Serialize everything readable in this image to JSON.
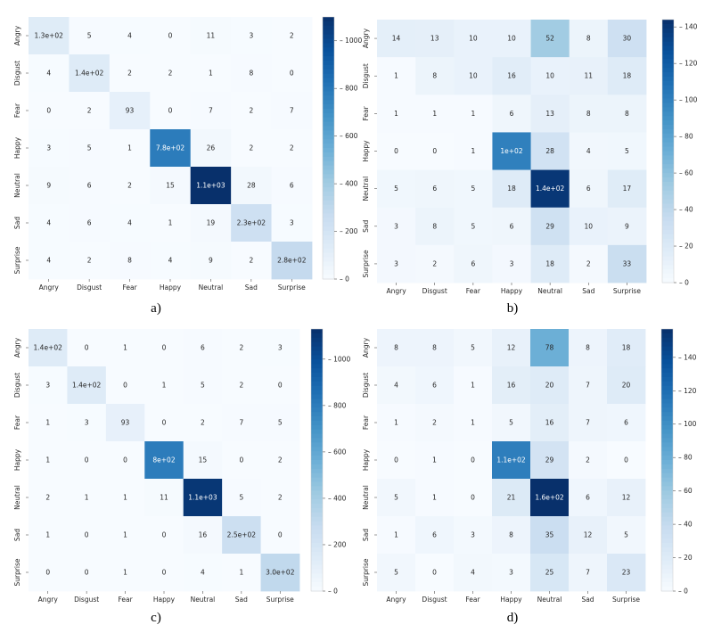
{
  "figure": {
    "captions": [
      "a)",
      "b)",
      "c)",
      "d)"
    ]
  },
  "colormap": {
    "name": "Blues",
    "stops": [
      "#f7fbff",
      "#deebf7",
      "#c6dbef",
      "#9ecae1",
      "#6baed6",
      "#4292c6",
      "#2171b5",
      "#08519c",
      "#08306b"
    ],
    "light_text": "#ffffff",
    "dark_text": "#262626"
  },
  "chart_data": [
    {
      "type": "heatmap",
      "caption": "a)",
      "row_labels": [
        "Angry",
        "Disgust",
        "Fear",
        "Happy",
        "Neutral",
        "Sad",
        "Surprise"
      ],
      "col_labels": [
        "Angry",
        "Disgust",
        "Fear",
        "Happy",
        "Neutral",
        "Sad",
        "Surprise"
      ],
      "values": [
        [
          130,
          5,
          4,
          0,
          11,
          3,
          2
        ],
        [
          4,
          140,
          2,
          2,
          1,
          8,
          0
        ],
        [
          0,
          2,
          93,
          0,
          7,
          2,
          7
        ],
        [
          3,
          5,
          1,
          780,
          26,
          2,
          2
        ],
        [
          9,
          6,
          2,
          15,
          1100,
          28,
          6
        ],
        [
          4,
          6,
          4,
          1,
          19,
          230,
          3
        ],
        [
          4,
          2,
          8,
          4,
          9,
          2,
          280
        ]
      ],
      "annotations": [
        [
          "1.3e+02",
          "5",
          "4",
          "0",
          "11",
          "3",
          "2"
        ],
        [
          "4",
          "1.4e+02",
          "2",
          "2",
          "1",
          "8",
          "0"
        ],
        [
          "0",
          "2",
          "93",
          "0",
          "7",
          "2",
          "7"
        ],
        [
          "3",
          "5",
          "1",
          "7.8e+02",
          "26",
          "2",
          "2"
        ],
        [
          "9",
          "6",
          "2",
          "15",
          "1.1e+03",
          "28",
          "6"
        ],
        [
          "4",
          "6",
          "4",
          "1",
          "19",
          "2.3e+02",
          "3"
        ],
        [
          "4",
          "2",
          "8",
          "4",
          "9",
          "2",
          "2.8e+02"
        ]
      ],
      "color_range": [
        0,
        1100
      ],
      "colorbar_ticks": [
        0,
        200,
        400,
        600,
        800,
        1000
      ],
      "colorbar_labels": [
        "0",
        "200",
        "400",
        "600",
        "800",
        "1000"
      ]
    },
    {
      "type": "heatmap",
      "caption": "b)",
      "row_labels": [
        "Angry",
        "Disgust",
        "Fear",
        "Happy",
        "Neutral",
        "Sad",
        "Surprise"
      ],
      "col_labels": [
        "Angry",
        "Disgust",
        "Fear",
        "Happy",
        "Neutral",
        "Sad",
        "Surprise"
      ],
      "values": [
        [
          14,
          13,
          10,
          10,
          52,
          8,
          30
        ],
        [
          1,
          8,
          10,
          16,
          10,
          11,
          18
        ],
        [
          1,
          1,
          1,
          6,
          13,
          8,
          8
        ],
        [
          0,
          0,
          1,
          100,
          28,
          4,
          5
        ],
        [
          5,
          6,
          5,
          18,
          140,
          6,
          17
        ],
        [
          3,
          8,
          5,
          6,
          29,
          10,
          9
        ],
        [
          3,
          2,
          6,
          3,
          18,
          2,
          33
        ]
      ],
      "annotations": [
        [
          "14",
          "13",
          "10",
          "10",
          "52",
          "8",
          "30"
        ],
        [
          "1",
          "8",
          "10",
          "16",
          "10",
          "11",
          "18"
        ],
        [
          "1",
          "1",
          "1",
          "6",
          "13",
          "8",
          "8"
        ],
        [
          "0",
          "0",
          "1",
          "1e+02",
          "28",
          "4",
          "5"
        ],
        [
          "5",
          "6",
          "5",
          "18",
          "1.4e+02",
          "6",
          "17"
        ],
        [
          "3",
          "8",
          "5",
          "6",
          "29",
          "10",
          "9"
        ],
        [
          "3",
          "2",
          "6",
          "3",
          "18",
          "2",
          "33"
        ]
      ],
      "color_range": [
        0,
        144
      ],
      "colorbar_ticks": [
        0,
        20,
        40,
        60,
        80,
        100,
        120,
        140
      ],
      "colorbar_labels": [
        "0",
        "20",
        "40",
        "60",
        "80",
        "100",
        "120",
        "140"
      ]
    },
    {
      "type": "heatmap",
      "caption": "c)",
      "row_labels": [
        "Angry",
        "Disgust",
        "Fear",
        "Happy",
        "Neutral",
        "Sad",
        "Surprise"
      ],
      "col_labels": [
        "Angry",
        "Disgust",
        "Fear",
        "Happy",
        "Neutral",
        "Sad",
        "Surprise"
      ],
      "values": [
        [
          140,
          0,
          1,
          0,
          6,
          2,
          3
        ],
        [
          3,
          140,
          0,
          1,
          5,
          2,
          0
        ],
        [
          1,
          3,
          93,
          0,
          2,
          7,
          5
        ],
        [
          1,
          0,
          0,
          800,
          15,
          0,
          2
        ],
        [
          2,
          1,
          1,
          11,
          1100,
          5,
          2
        ],
        [
          1,
          0,
          1,
          0,
          16,
          250,
          0
        ],
        [
          0,
          0,
          1,
          0,
          4,
          1,
          300
        ]
      ],
      "annotations": [
        [
          "1.4e+02",
          "0",
          "1",
          "0",
          "6",
          "2",
          "3"
        ],
        [
          "3",
          "1.4e+02",
          "0",
          "1",
          "5",
          "2",
          "0"
        ],
        [
          "1",
          "3",
          "93",
          "0",
          "2",
          "7",
          "5"
        ],
        [
          "1",
          "0",
          "0",
          "8e+02",
          "15",
          "0",
          "2"
        ],
        [
          "2",
          "1",
          "1",
          "11",
          "1.1e+03",
          "5",
          "2"
        ],
        [
          "1",
          "0",
          "1",
          "0",
          "16",
          "2.5e+02",
          "0"
        ],
        [
          "0",
          "0",
          "1",
          "0",
          "4",
          "1",
          "3.0e+02"
        ]
      ],
      "color_range": [
        0,
        1130
      ],
      "colorbar_ticks": [
        0,
        200,
        400,
        600,
        800,
        1000
      ],
      "colorbar_labels": [
        "0",
        "200",
        "400",
        "600",
        "800",
        "1000"
      ]
    },
    {
      "type": "heatmap",
      "caption": "d)",
      "row_labels": [
        "Angry",
        "Disgust",
        "Fear",
        "Happy",
        "Neutral",
        "Sad",
        "Surprise"
      ],
      "col_labels": [
        "Angry",
        "Disgust",
        "Fear",
        "Happy",
        "Neutral",
        "Sad",
        "Surprise"
      ],
      "values": [
        [
          8,
          8,
          5,
          12,
          78,
          8,
          18
        ],
        [
          4,
          6,
          1,
          16,
          20,
          7,
          20
        ],
        [
          1,
          2,
          1,
          5,
          16,
          7,
          6
        ],
        [
          0,
          1,
          0,
          110,
          29,
          2,
          0
        ],
        [
          5,
          1,
          0,
          21,
          160,
          6,
          12
        ],
        [
          1,
          6,
          3,
          8,
          35,
          12,
          5
        ],
        [
          5,
          0,
          4,
          3,
          25,
          7,
          23
        ]
      ],
      "annotations": [
        [
          "8",
          "8",
          "5",
          "12",
          "78",
          "8",
          "18"
        ],
        [
          "4",
          "6",
          "1",
          "16",
          "20",
          "7",
          "20"
        ],
        [
          "1",
          "2",
          "1",
          "5",
          "16",
          "7",
          "6"
        ],
        [
          "0",
          "1",
          "0",
          "1.1e+02",
          "29",
          "2",
          "0"
        ],
        [
          "5",
          "1",
          "0",
          "21",
          "1.6e+02",
          "6",
          "12"
        ],
        [
          "1",
          "6",
          "3",
          "8",
          "35",
          "12",
          "5"
        ],
        [
          "5",
          "0",
          "4",
          "3",
          "25",
          "7",
          "23"
        ]
      ],
      "color_range": [
        0,
        157
      ],
      "colorbar_ticks": [
        0,
        20,
        40,
        60,
        80,
        100,
        120,
        140
      ],
      "colorbar_labels": [
        "0",
        "20",
        "40",
        "60",
        "80",
        "100",
        "120",
        "140"
      ]
    }
  ]
}
